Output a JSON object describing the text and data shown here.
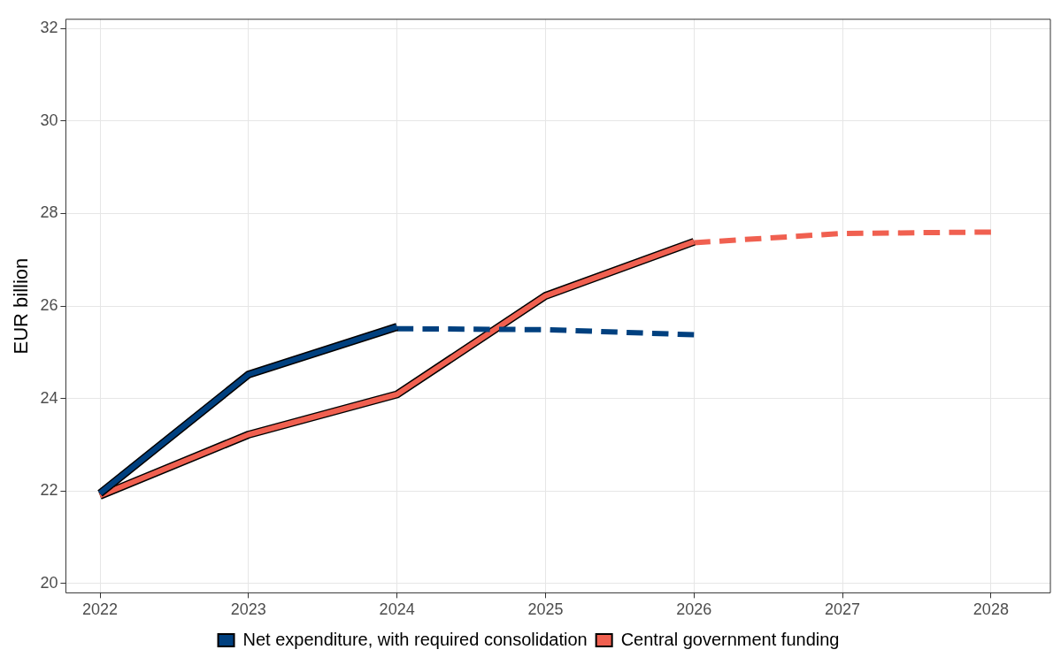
{
  "chart_data": {
    "type": "line",
    "ylabel": "EUR billion",
    "xlim": [
      2021.77,
      2028.4
    ],
    "xticks": [
      2022,
      2023,
      2024,
      2025,
      2026,
      2027,
      2028
    ],
    "ylim": [
      19.8,
      32.2
    ],
    "yticks": [
      20,
      22,
      24,
      26,
      28,
      30,
      32
    ],
    "grid": true,
    "legend": "bottom",
    "marker": "none",
    "series": [
      {
        "name": "Net expenditure, with required consolidation",
        "color": "#00407f",
        "x": [
          2022,
          2023,
          2024
        ],
        "values": [
          21.95,
          24.52,
          25.55
        ],
        "line_style": "solid"
      },
      {
        "color": "#00407f",
        "x": [
          2024,
          2025,
          2026
        ],
        "values": [
          25.51,
          25.49,
          25.38
        ],
        "line_style": "dashed"
      },
      {
        "name": "Central government funding",
        "color": "#f06050",
        "x": [
          2022,
          2023,
          2024,
          2025,
          2026
        ],
        "values": [
          21.9,
          23.22,
          24.09,
          26.22,
          27.39
        ],
        "line_style": "solid"
      },
      {
        "color": "#f06050",
        "x": [
          2026,
          2027,
          2028
        ],
        "values": [
          27.37,
          27.57,
          27.6
        ],
        "line_style": "dashed"
      }
    ]
  }
}
